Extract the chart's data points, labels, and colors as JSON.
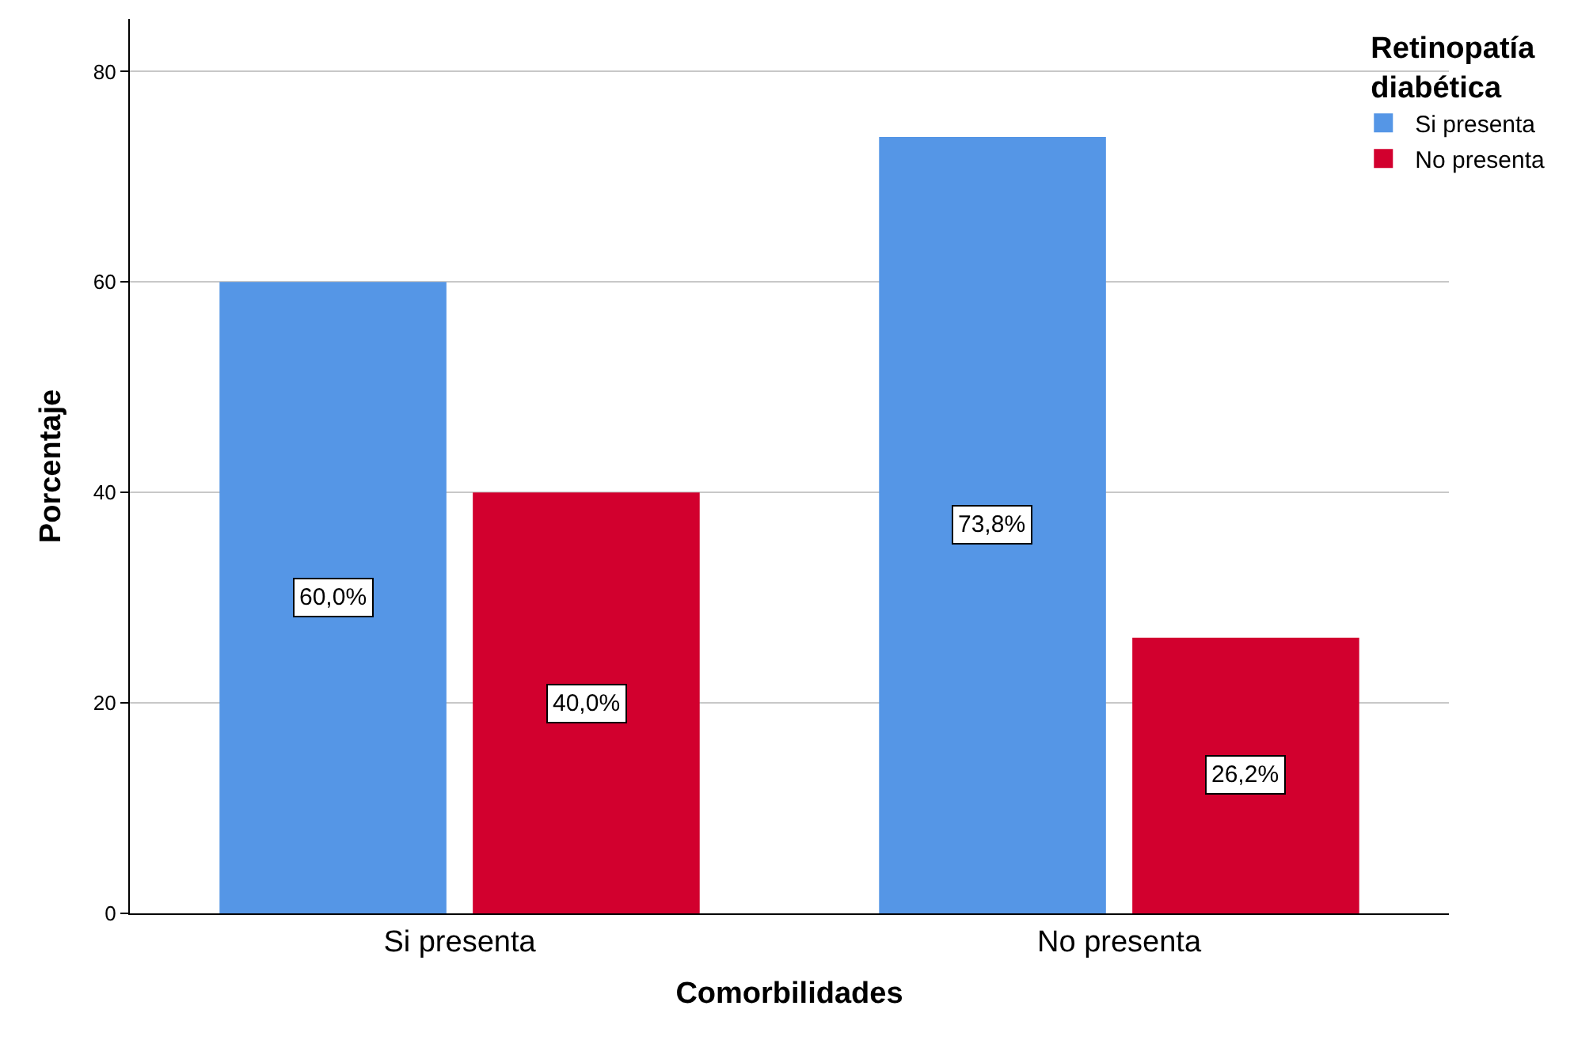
{
  "chart_data": {
    "type": "bar",
    "xlabel": "Comorbilidades",
    "ylabel": "Porcentaje",
    "legend_title": "Retinopatía diabética",
    "categories": [
      "Si presenta",
      "No presenta"
    ],
    "series": [
      {
        "name": "Si presenta",
        "color": "#5596e6",
        "values": [
          60.0,
          73.8
        ],
        "value_labels": [
          "60,0%",
          "73,8%"
        ]
      },
      {
        "name": "No presenta",
        "color": "#d2002e",
        "values": [
          40.0,
          26.2
        ],
        "value_labels": [
          "40,0%",
          "26,2%"
        ]
      }
    ],
    "ylim": [
      0,
      85
    ],
    "yticks": [
      0,
      20,
      40,
      60,
      80
    ],
    "grid": "y",
    "legend": "top right"
  }
}
